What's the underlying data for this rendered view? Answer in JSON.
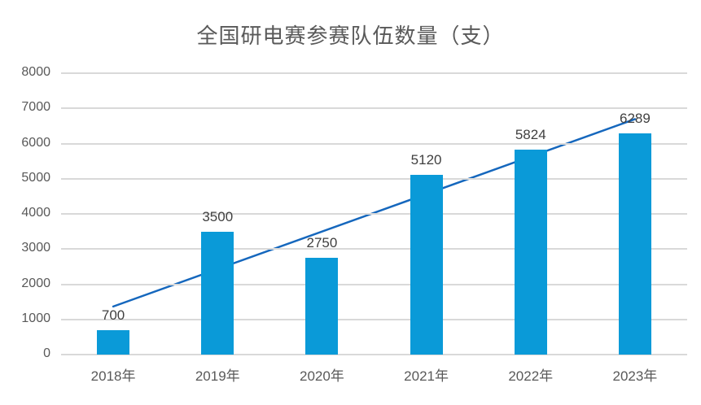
{
  "chart_data": {
    "type": "bar",
    "title": "全国研电赛参赛队伍数量（支）",
    "categories": [
      "2018年",
      "2019年",
      "2020年",
      "2021年",
      "2022年",
      "2023年"
    ],
    "values": [
      700,
      3500,
      2750,
      5120,
      5824,
      6289
    ],
    "data_labels": [
      "700",
      "3500",
      "2750",
      "5120",
      "5824",
      "6289"
    ],
    "xlabel": "",
    "ylabel": "",
    "ylim": [
      0,
      8000
    ],
    "yticks": [
      0,
      1000,
      2000,
      3000,
      4000,
      5000,
      6000,
      7000,
      8000
    ],
    "ytick_labels": [
      "0",
      "1000",
      "2000",
      "3000",
      "4000",
      "5000",
      "6000",
      "7000",
      "8000"
    ],
    "grid": true,
    "legend": "none",
    "trendline": {
      "type": "linear",
      "start_value": 1367,
      "end_value": 6694
    },
    "colors": {
      "bar": "#0a9ad8",
      "trendline": "#1567bd",
      "title_text": "#595959",
      "axis_text": "#595959",
      "data_label_text": "#404040",
      "gridline": "#d9d9d9",
      "axis_line": "#d9d9d9",
      "background": "#ffffff"
    }
  }
}
